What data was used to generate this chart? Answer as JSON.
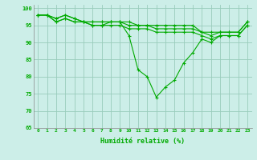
{
  "title": "",
  "xlabel": "Humidité relative (%)",
  "ylabel": "",
  "bg_color": "#cceee8",
  "grid_color": "#99ccbb",
  "line_color": "#00aa00",
  "marker": "+",
  "xlim": [
    -0.5,
    23.5
  ],
  "ylim": [
    65,
    101
  ],
  "yticks": [
    65,
    70,
    75,
    80,
    85,
    90,
    95,
    100
  ],
  "xticks": [
    0,
    1,
    2,
    3,
    4,
    5,
    6,
    7,
    8,
    9,
    10,
    11,
    12,
    13,
    14,
    15,
    16,
    17,
    18,
    19,
    20,
    21,
    22,
    23
  ],
  "series": [
    [
      98,
      98,
      97,
      98,
      97,
      96,
      96,
      96,
      96,
      96,
      92,
      82,
      80,
      74,
      77,
      79,
      84,
      87,
      91,
      90,
      92,
      92,
      92,
      95
    ],
    [
      98,
      98,
      96,
      97,
      96,
      96,
      95,
      95,
      95,
      95,
      94,
      94,
      94,
      93,
      93,
      93,
      93,
      93,
      92,
      91,
      92,
      92,
      92,
      95
    ],
    [
      98,
      98,
      96,
      97,
      96,
      96,
      95,
      95,
      96,
      96,
      95,
      95,
      95,
      94,
      94,
      94,
      94,
      94,
      93,
      93,
      93,
      93,
      93,
      96
    ],
    [
      98,
      98,
      97,
      98,
      97,
      96,
      96,
      96,
      96,
      96,
      96,
      95,
      95,
      95,
      95,
      95,
      95,
      95,
      93,
      92,
      93,
      93,
      93,
      96
    ]
  ]
}
